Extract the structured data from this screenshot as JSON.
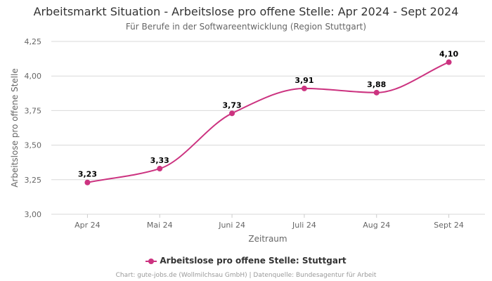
{
  "title": "Arbeitsmarkt Situation - Arbeitslose pro offene Stelle: Apr 2024 - Sept 2024",
  "subtitle": "Für Berufe in der Softwareentwicklung (Region Stuttgart)",
  "credits": "Chart: gute-jobs.de (Wollmilchsau GmbH) | Datenquelle: Bundesagentur für Arbeit",
  "colors": {
    "series": "#cc3380"
  },
  "chart_data": {
    "type": "line",
    "title": "Arbeitsmarkt Situation - Arbeitslose pro offene Stelle: Apr 2024 - Sept 2024",
    "subtitle": "Für Berufe in der Softwareentwicklung (Region Stuttgart)",
    "xlabel": "Zeitraum",
    "ylabel": "Arbeitslose pro offene Stelle",
    "categories": [
      "Apr 24",
      "Mai 24",
      "Juni 24",
      "Juli 24",
      "Aug 24",
      "Sept 24"
    ],
    "ylim": [
      3.0,
      4.25
    ],
    "yticks": [
      "3,00",
      "3,25",
      "3,50",
      "3,75",
      "4,00",
      "4,25"
    ],
    "grid": true,
    "legend": "bottom",
    "series": [
      {
        "name": "Arbeitslose pro offene Stelle: Stuttgart",
        "values": [
          3.23,
          3.33,
          3.73,
          3.91,
          3.88,
          4.1
        ],
        "labels": [
          "3,23",
          "3,33",
          "3,73",
          "3,91",
          "3,88",
          "4,10"
        ]
      }
    ]
  }
}
